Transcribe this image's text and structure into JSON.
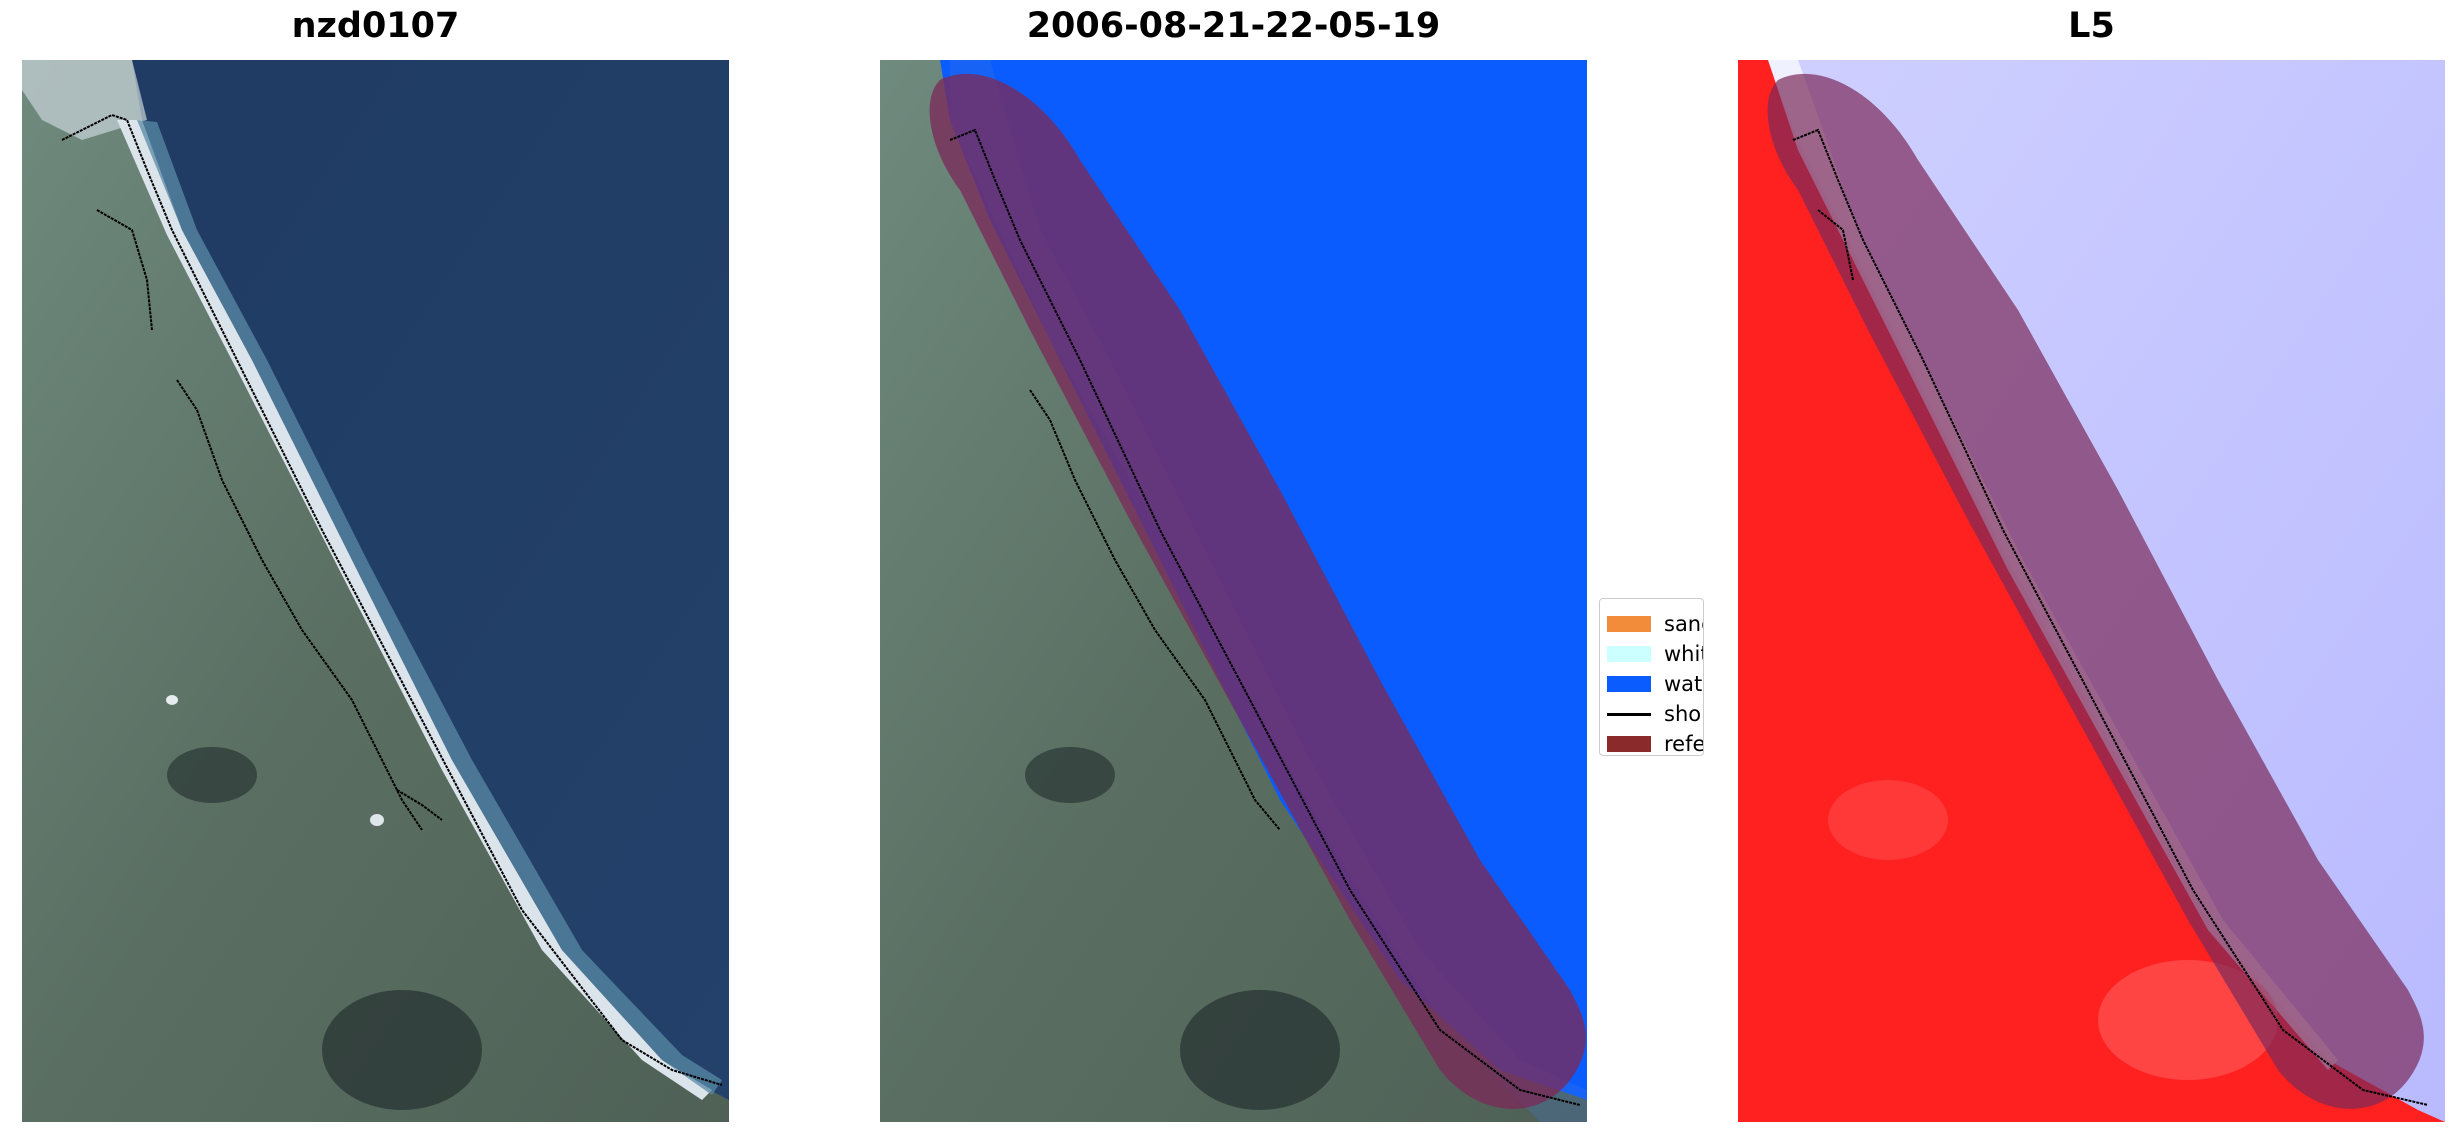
{
  "panels": [
    {
      "title": "nzd0107"
    },
    {
      "title": "2006-08-21-22-05-19"
    },
    {
      "title": "L5"
    }
  ],
  "legend": {
    "items": [
      {
        "label": "sand",
        "color": "#f28c3a"
      },
      {
        "label": "whitewater",
        "color": "#ccffff"
      },
      {
        "label": "water",
        "color": "#0a5cff"
      },
      {
        "label": "shoreline",
        "color": "#000000"
      },
      {
        "label": "reference",
        "color": "#8b2a2a"
      }
    ]
  },
  "colors": {
    "land": "#596f62",
    "ocean": "#22406a",
    "water_class": "#0a5cff",
    "index_land": "#ff2020",
    "index_water": "#c6c6ff",
    "reference_band": "#7a2a5a"
  }
}
